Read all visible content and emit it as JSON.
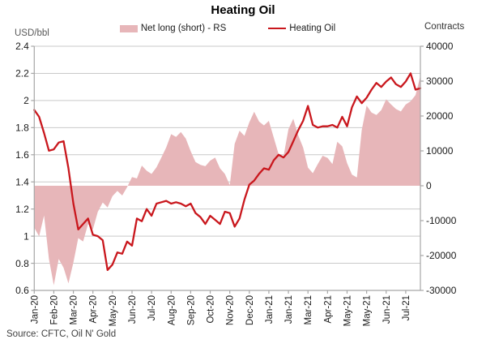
{
  "header": {
    "title": "Heating Oil"
  },
  "legend": [
    {
      "label": "Net long (short) - RS",
      "swatch": "area-swatch",
      "color": "#E7B6B9"
    },
    {
      "label": "Heating Oil",
      "swatch": "line-swatch",
      "color": "#C9171D"
    }
  ],
  "axes": {
    "left_unit": "USD/bbl",
    "right_unit": "Contracts",
    "left_ticks": [
      "2.4",
      "2.2",
      "2",
      "1.8",
      "1.6",
      "1.4",
      "1.2",
      "1",
      "0.8",
      "0.6"
    ],
    "right_ticks": [
      "40000",
      "30000",
      "20000",
      "10000",
      "0",
      "-10000",
      "-20000",
      "-30000"
    ]
  },
  "source": "Source: CFTC, Oil N' Gold",
  "colors": {
    "area": "#E7B6B9",
    "line": "#C9171D",
    "grid": "#C9C9C9",
    "spine": "#A6A6A6",
    "tick_text": "#1a1a1a"
  },
  "chart_data": {
    "type": "area",
    "title": "Heating Oil",
    "x_labels": [
      "Jan-20",
      "Feb-20",
      "Mar-20",
      "Apr-20",
      "May-20",
      "Jun-20",
      "Jul-20",
      "Aug-20",
      "Sep-20",
      "Oct-20",
      "Nov-20",
      "Dec-20",
      "Jan-21",
      "Jan-21",
      "Mar-21",
      "Apr-21",
      "May-21",
      "May-21",
      "Jun-21",
      "Jul-21"
    ],
    "label_every": 4,
    "left_axis": {
      "label": "USD/bbl",
      "min": 0.6,
      "max": 2.4,
      "step": 0.2
    },
    "right_axis": {
      "label": "Contracts",
      "min": -30000,
      "max": 40000,
      "step": 10000
    },
    "grid": "horizontal-only",
    "legend_position": "top-center",
    "series": [
      {
        "name": "Net long (short) - RS",
        "type": "area",
        "axis": "right",
        "color": "#E7B6B9",
        "values": [
          -12000,
          -14500,
          -8500,
          -21000,
          -28500,
          -21000,
          -23500,
          -28000,
          -22000,
          -15000,
          -16000,
          -11000,
          -12500,
          -7500,
          -4800,
          -6200,
          -3000,
          -1500,
          -2800,
          -400,
          2500,
          2100,
          5800,
          4300,
          3400,
          5300,
          8100,
          11000,
          14800,
          14000,
          15400,
          13500,
          9900,
          6800,
          6000,
          5600,
          7200,
          8100,
          5000,
          3400,
          200,
          12000,
          15800,
          14300,
          18200,
          21200,
          18400,
          17300,
          18600,
          13800,
          9000,
          8400,
          16200,
          19200,
          14500,
          11000,
          5200,
          3600,
          6200,
          8600,
          8000,
          6200,
          12600,
          11300,
          6500,
          3200,
          2400,
          16000,
          23000,
          21000,
          20300,
          21700,
          24800,
          23300,
          22000,
          21300,
          23300,
          24200,
          26000,
          31500
        ]
      },
      {
        "name": "Heating Oil",
        "type": "line",
        "axis": "left",
        "color": "#C9171D",
        "values": [
          1.93,
          1.88,
          1.76,
          1.63,
          1.64,
          1.69,
          1.7,
          1.5,
          1.24,
          1.05,
          1.09,
          1.13,
          1.01,
          1.0,
          0.97,
          0.75,
          0.79,
          0.88,
          0.87,
          0.96,
          0.93,
          1.13,
          1.11,
          1.2,
          1.15,
          1.24,
          1.25,
          1.26,
          1.24,
          1.25,
          1.24,
          1.22,
          1.24,
          1.17,
          1.14,
          1.09,
          1.15,
          1.12,
          1.09,
          1.18,
          1.17,
          1.07,
          1.13,
          1.27,
          1.38,
          1.41,
          1.46,
          1.5,
          1.49,
          1.56,
          1.6,
          1.58,
          1.62,
          1.7,
          1.78,
          1.85,
          1.96,
          1.82,
          1.8,
          1.81,
          1.81,
          1.82,
          1.8,
          1.88,
          1.81,
          1.95,
          2.03,
          1.98,
          2.02,
          2.08,
          2.13,
          2.1,
          2.14,
          2.17,
          2.12,
          2.1,
          2.14,
          2.2,
          2.08,
          2.09
        ]
      }
    ]
  }
}
